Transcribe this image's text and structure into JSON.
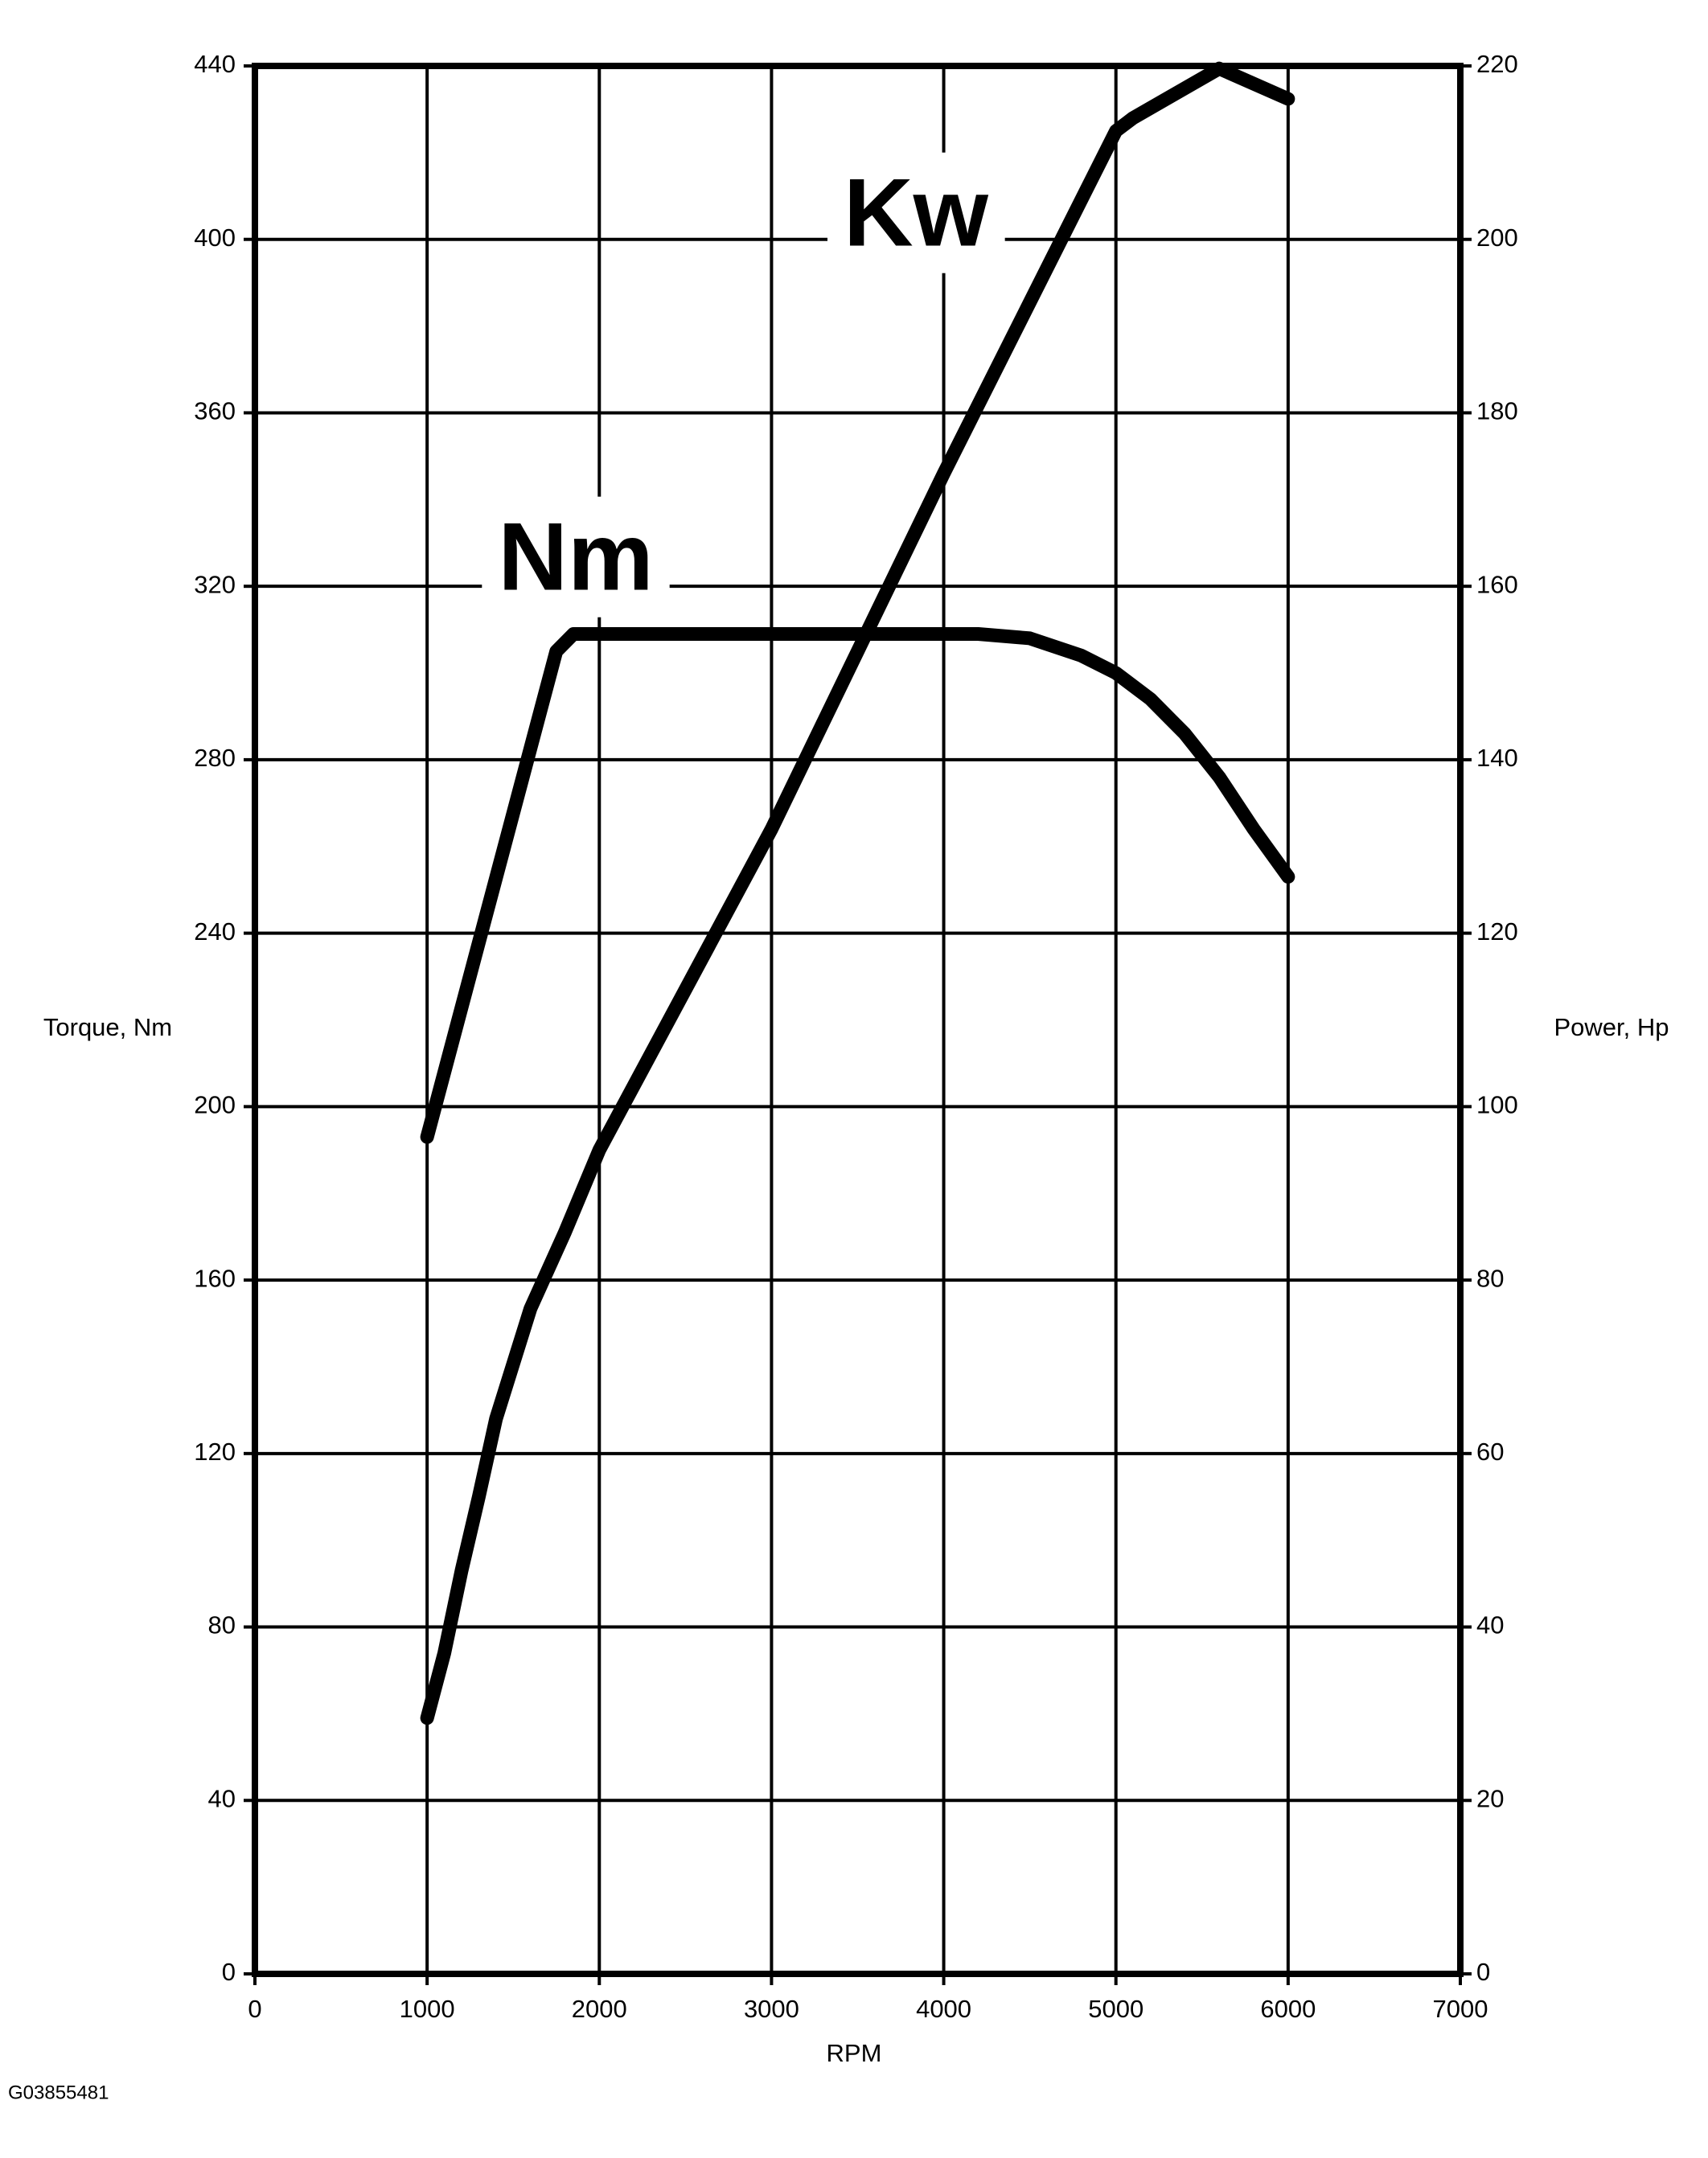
{
  "chart_data": {
    "type": "line",
    "xlabel": "RPM",
    "ylabel": "Torque, Nm",
    "y2label": "Power, Hp",
    "footnote": "G03855481",
    "xlim": [
      0,
      7000
    ],
    "xticks": [
      0,
      1000,
      2000,
      3000,
      4000,
      5000,
      6000,
      7000
    ],
    "ylim": [
      0,
      440
    ],
    "yticks": [
      0,
      40,
      80,
      120,
      160,
      200,
      240,
      280,
      320,
      360,
      400,
      440
    ],
    "y2lim": [
      0,
      220
    ],
    "y2ticks": [
      0,
      20,
      40,
      60,
      80,
      100,
      120,
      140,
      160,
      180,
      200,
      220
    ],
    "grid": true,
    "series": [
      {
        "name": "Nm",
        "color": "#000000",
        "axis": "y",
        "x": [
          1000,
          1750,
          1850,
          2000,
          4200,
          4500,
          4800,
          5000,
          5200,
          5400,
          5600,
          5800,
          6000
        ],
        "values": [
          193,
          305,
          309,
          309,
          309,
          308,
          304,
          300,
          294,
          286,
          276,
          264,
          253
        ]
      },
      {
        "name": "Kw",
        "color": "#000000",
        "axis": "y2",
        "x": [
          1000,
          1100,
          1200,
          1300,
          1400,
          1600,
          1800,
          2000,
          3000,
          4000,
          5000,
          5100,
          5600,
          6000
        ],
        "values": [
          29.5,
          37,
          46.5,
          55,
          64,
          76.7,
          85.5,
          95,
          132,
          173,
          212.5,
          214,
          219.7,
          216.2
        ]
      }
    ]
  }
}
